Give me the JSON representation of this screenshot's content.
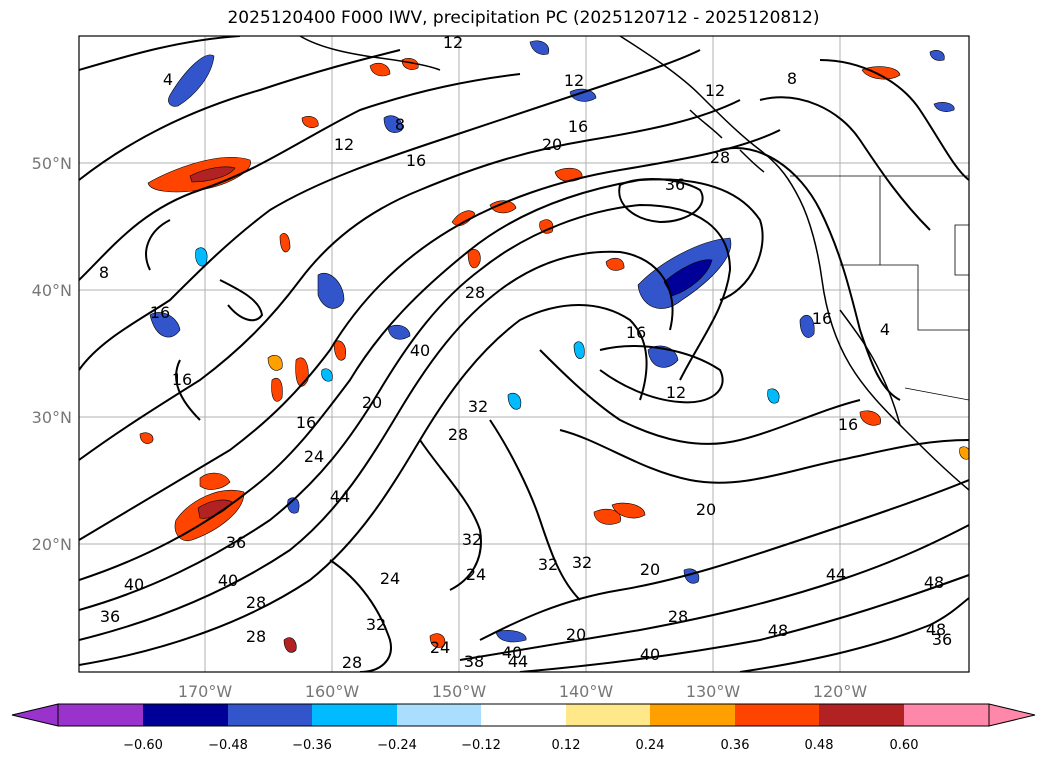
{
  "title": "2025120400 F000 IWV, precipitation PC (2025120712 - 2025120812)",
  "map": {
    "lat_labels": [
      "50°N",
      "40°N",
      "30°N",
      "20°N"
    ],
    "lon_labels": [
      "170°W",
      "160°W",
      "150°W",
      "140°W",
      "130°W",
      "120°W"
    ],
    "iwv_contour_labels": [
      "4",
      "12",
      "8",
      "12",
      "12",
      "16",
      "20",
      "16",
      "28",
      "36",
      "8",
      "12",
      "16",
      "20",
      "16",
      "12",
      "16",
      "16",
      "28",
      "20",
      "24",
      "40",
      "32",
      "28",
      "44",
      "36",
      "40",
      "24",
      "28",
      "32",
      "32",
      "20",
      "36",
      "24",
      "28",
      "24",
      "32",
      "38",
      "28",
      "40",
      "44",
      "48",
      "40",
      "48",
      "44",
      "48",
      "36",
      "16",
      "4",
      "8",
      "16",
      "40",
      "28",
      "20",
      "32"
    ]
  },
  "colorbar": {
    "ticks": [
      "−0.60",
      "−0.48",
      "−0.36",
      "−0.24",
      "−0.12",
      "0.12",
      "0.24",
      "0.36",
      "0.48",
      "0.60"
    ],
    "colors": [
      "#9933cc",
      "#000099",
      "#3355cc",
      "#00bbff",
      "#aadeff",
      "#ffffff",
      "#ffe88a",
      "#ffa000",
      "#ff4400",
      "#b22222",
      "#ff88aa"
    ]
  }
}
